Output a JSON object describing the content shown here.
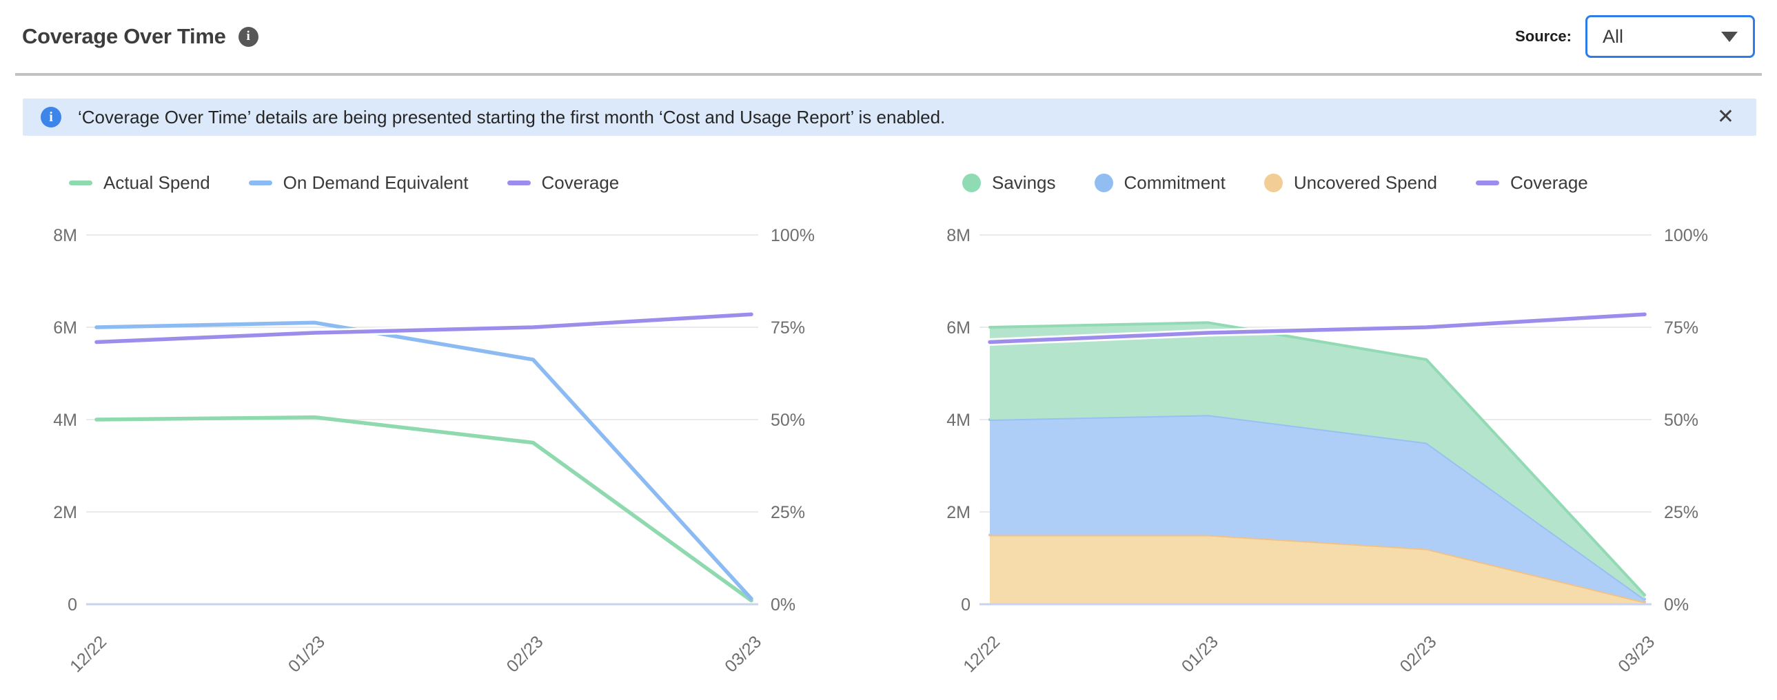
{
  "header": {
    "title": "Coverage Over Time",
    "info_icon_glyph": "i",
    "source_label": "Source:",
    "source_value": "All"
  },
  "banner": {
    "icon_glyph": "i",
    "text": "‘Coverage Over Time’ details are being presented starting the first month ‘Cost and Usage Report’ is enabled.",
    "close_glyph": "✕"
  },
  "colors": {
    "grid": "#e4e4e4",
    "zero_axis": "#c9d3f0",
    "axis_text": "#6e6e6e",
    "legend_text": "#3a3a3a",
    "title_text": "#3d3d3d",
    "dropdown_border": "#2e7ce8",
    "divider": "#c2c2c2",
    "banner_bg": "#dce9fb",
    "banner_icon": "#3e85ea"
  },
  "chart_data": [
    {
      "type": "line",
      "title": "Coverage Over Time — lines",
      "categories": [
        "12/22",
        "01/23",
        "02/23",
        "03/23"
      ],
      "left_axis": {
        "unit": "M",
        "max": 8,
        "ticks": [
          {
            "v": 0,
            "label": "0"
          },
          {
            "v": 2,
            "label": "2M"
          },
          {
            "v": 4,
            "label": "4M"
          },
          {
            "v": 6,
            "label": "6M"
          },
          {
            "v": 8,
            "label": "8M"
          }
        ]
      },
      "right_axis": {
        "unit": "%",
        "max": 100,
        "ticks": [
          {
            "v": 0,
            "label": "0%"
          },
          {
            "v": 25,
            "label": "25%"
          },
          {
            "v": 50,
            "label": "50%"
          },
          {
            "v": 75,
            "label": "75%"
          },
          {
            "v": 100,
            "label": "100%"
          }
        ]
      },
      "grid": true,
      "series": [
        {
          "name": "Actual Spend",
          "kind": "line",
          "axis": "left",
          "color": "#8fd9ae",
          "values": [
            4.0,
            4.05,
            3.5,
            0.08
          ]
        },
        {
          "name": "On Demand Equivalent",
          "kind": "line",
          "axis": "left",
          "color": "#8cbaf2",
          "values": [
            6.0,
            6.1,
            5.3,
            0.12
          ]
        },
        {
          "name": "Coverage",
          "kind": "line",
          "axis": "right",
          "color": "#9c8cec",
          "halo": true,
          "values": [
            71,
            73.5,
            75,
            78.5
          ]
        }
      ],
      "legend": [
        {
          "label": "Actual Spend",
          "swatch": "line",
          "color": "#8fd9ae"
        },
        {
          "label": "On Demand Equivalent",
          "swatch": "line",
          "color": "#8cbaf2"
        },
        {
          "label": "Coverage",
          "swatch": "line",
          "color": "#9c8cec"
        }
      ],
      "legend_position": "top-left"
    },
    {
      "type": "area",
      "stacked": true,
      "title": "Coverage Over Time — stacked spend",
      "categories": [
        "12/22",
        "01/23",
        "02/23",
        "03/23"
      ],
      "left_axis": {
        "unit": "M",
        "max": 8,
        "ticks": [
          {
            "v": 0,
            "label": "0"
          },
          {
            "v": 2,
            "label": "2M"
          },
          {
            "v": 4,
            "label": "4M"
          },
          {
            "v": 6,
            "label": "6M"
          },
          {
            "v": 8,
            "label": "8M"
          }
        ]
      },
      "right_axis": {
        "unit": "%",
        "max": 100,
        "ticks": [
          {
            "v": 0,
            "label": "0%"
          },
          {
            "v": 25,
            "label": "25%"
          },
          {
            "v": 50,
            "label": "50%"
          },
          {
            "v": 75,
            "label": "75%"
          },
          {
            "v": 100,
            "label": "100%"
          }
        ]
      },
      "grid": true,
      "series": [
        {
          "name": "Uncovered Spend",
          "kind": "area",
          "axis": "left",
          "fill": "#f6dcab",
          "edge": "#efc289",
          "values": [
            1.5,
            1.5,
            1.2,
            0.05
          ]
        },
        {
          "name": "Commitment",
          "kind": "area",
          "axis": "left",
          "fill": "#aecdf7",
          "edge": "#97c0f3",
          "values": [
            2.5,
            2.6,
            2.3,
            0.06
          ]
        },
        {
          "name": "Savings",
          "kind": "area",
          "axis": "left",
          "fill": "#b4e5cc",
          "edge": "#92dab4",
          "values": [
            2.0,
            2.0,
            1.8,
            0.09
          ]
        },
        {
          "name": "Coverage",
          "kind": "line",
          "axis": "right",
          "color": "#9c8cec",
          "halo": true,
          "values": [
            71,
            73.5,
            75,
            78.5
          ]
        }
      ],
      "legend": [
        {
          "label": "Savings",
          "swatch": "dot",
          "color": "#8fdcb4"
        },
        {
          "label": "Commitment",
          "swatch": "dot",
          "color": "#92bdf2"
        },
        {
          "label": "Uncovered Spend",
          "swatch": "dot",
          "color": "#f2cd96"
        },
        {
          "label": "Coverage",
          "swatch": "line",
          "color": "#9c8cec"
        }
      ],
      "legend_position": "top-left"
    }
  ]
}
